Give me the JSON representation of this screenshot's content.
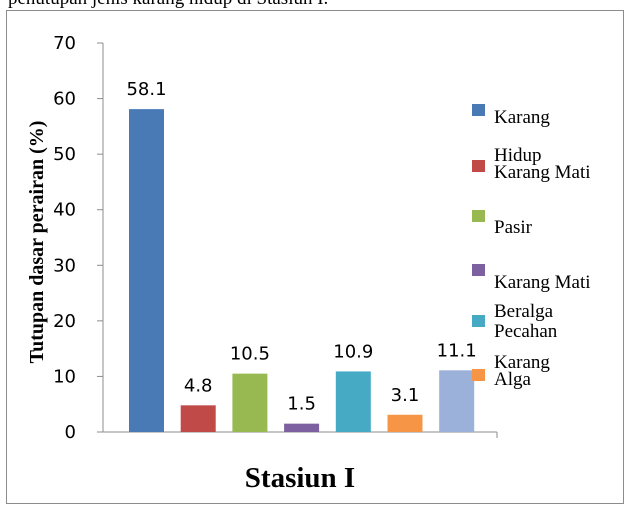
{
  "top_text": "penutupan jenis karang hidup di Stasiun I.",
  "chart_data": {
    "type": "bar",
    "title": "",
    "xlabel": "Stasiun I",
    "ylabel": "Tutupan dasar perairan (%)",
    "ylim": [
      0,
      70
    ],
    "yticks": [
      0,
      10,
      20,
      30,
      40,
      50,
      60,
      70
    ],
    "grid": false,
    "legend_position": "right",
    "categories": [
      "Stasiun I"
    ],
    "series": [
      {
        "name": "Karang Hidup",
        "values": [
          58.1
        ],
        "color": "#4a7ab5"
      },
      {
        "name": "Karang Mati",
        "values": [
          4.8
        ],
        "color": "#bf4a48"
      },
      {
        "name": "Pasir",
        "values": [
          10.5
        ],
        "color": "#98b952"
      },
      {
        "name": "Karang Mati Beralga",
        "values": [
          1.5
        ],
        "color": "#7d60a0"
      },
      {
        "name": "Pecahan Karang",
        "values": [
          10.9
        ],
        "color": "#46aac5"
      },
      {
        "name": "Alga",
        "values": [
          3.1
        ],
        "color": "#f69545"
      },
      {
        "name": "",
        "values": [
          11.1
        ],
        "color": "#9bb1d9"
      }
    ],
    "data_labels": [
      "58.1",
      "4.8",
      "10.5",
      "1.5",
      "10.9",
      "3.1",
      "11.1"
    ]
  }
}
